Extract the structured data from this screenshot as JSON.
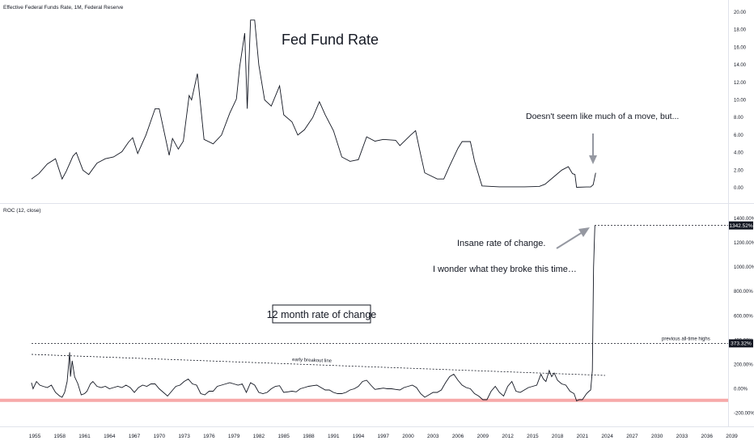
{
  "chart_data": [
    {
      "type": "line",
      "title": "Effective Federal Funds Rate, 1M, Federal Reserve",
      "annotation_title": "Fed Fund Rate",
      "annotation_note": "Doesn't seem like much of a move, but...",
      "y_ticks": [
        "20.00",
        "18.00",
        "16.00",
        "14.00",
        "12.00",
        "10.00",
        "8.00",
        "6.00",
        "4.00",
        "2.00",
        "0.00"
      ],
      "ylim": [
        -0.5,
        20.5
      ],
      "series": [
        {
          "color": "#131722",
          "points": [
            [
              1954.6,
              1.0
            ],
            [
              1955.5,
              1.6
            ],
            [
              1956.5,
              2.7
            ],
            [
              1957.5,
              3.3
            ],
            [
              1958.3,
              1.0
            ],
            [
              1958.8,
              1.9
            ],
            [
              1959.6,
              3.6
            ],
            [
              1960.0,
              4.0
            ],
            [
              1960.8,
              2.0
            ],
            [
              1961.5,
              1.5
            ],
            [
              1962.5,
              2.8
            ],
            [
              1963.5,
              3.3
            ],
            [
              1964.5,
              3.5
            ],
            [
              1965.5,
              4.1
            ],
            [
              1966.3,
              5.2
            ],
            [
              1966.8,
              5.7
            ],
            [
              1967.4,
              3.9
            ],
            [
              1968.4,
              6.0
            ],
            [
              1969.5,
              9.0
            ],
            [
              1970.0,
              9.0
            ],
            [
              1971.2,
              3.7
            ],
            [
              1971.6,
              5.6
            ],
            [
              1972.3,
              4.4
            ],
            [
              1972.9,
              5.3
            ],
            [
              1973.6,
              10.5
            ],
            [
              1973.9,
              10.0
            ],
            [
              1974.6,
              13.0
            ],
            [
              1975.4,
              5.5
            ],
            [
              1976.5,
              5.0
            ],
            [
              1977.5,
              6.0
            ],
            [
              1978.5,
              8.5
            ],
            [
              1979.3,
              10.1
            ],
            [
              1979.7,
              13.8
            ],
            [
              1980.3,
              17.6
            ],
            [
              1980.6,
              9.0
            ],
            [
              1981.0,
              19.1
            ],
            [
              1981.5,
              19.1
            ],
            [
              1982.0,
              14.0
            ],
            [
              1982.7,
              10.0
            ],
            [
              1983.5,
              9.3
            ],
            [
              1984.5,
              11.6
            ],
            [
              1985.0,
              8.3
            ],
            [
              1986.0,
              7.5
            ],
            [
              1986.7,
              6.0
            ],
            [
              1987.5,
              6.6
            ],
            [
              1988.5,
              8.0
            ],
            [
              1989.3,
              9.8
            ],
            [
              1990.0,
              8.3
            ],
            [
              1991.0,
              6.5
            ],
            [
              1992.0,
              3.5
            ],
            [
              1993.0,
              3.0
            ],
            [
              1994.0,
              3.2
            ],
            [
              1995.0,
              5.8
            ],
            [
              1996.0,
              5.3
            ],
            [
              1997.0,
              5.5
            ],
            [
              1998.5,
              5.4
            ],
            [
              1999.0,
              4.8
            ],
            [
              2000.3,
              6.0
            ],
            [
              2000.9,
              6.5
            ],
            [
              2001.5,
              3.8
            ],
            [
              2002.0,
              1.7
            ],
            [
              2003.5,
              1.0
            ],
            [
              2004.3,
              1.0
            ],
            [
              2005.0,
              2.5
            ],
            [
              2006.0,
              4.5
            ],
            [
              2006.5,
              5.25
            ],
            [
              2007.5,
              5.25
            ],
            [
              2008.0,
              3.0
            ],
            [
              2008.9,
              0.2
            ],
            [
              2011.0,
              0.1
            ],
            [
              2014.0,
              0.1
            ],
            [
              2015.8,
              0.15
            ],
            [
              2016.5,
              0.4
            ],
            [
              2017.5,
              1.2
            ],
            [
              2018.5,
              2.0
            ],
            [
              2019.3,
              2.4
            ],
            [
              2019.8,
              1.6
            ],
            [
              2020.1,
              1.5
            ],
            [
              2020.3,
              0.05
            ],
            [
              2021.5,
              0.08
            ],
            [
              2022.0,
              0.08
            ],
            [
              2022.3,
              0.33
            ],
            [
              2022.6,
              1.7
            ]
          ]
        }
      ]
    },
    {
      "type": "line",
      "title": "ROC (12, close)",
      "annotation_title": "12 month rate of change",
      "annotation_note_1": "Insane rate of change.",
      "annotation_note_2": "I wonder what they broke this time…",
      "trendline_label": "early breakout line",
      "hline_label": "previous all-time highs",
      "last_value": "1342.52%",
      "prev_high_value": "373.32%",
      "hline_value": 373.32,
      "y_ticks": [
        "1400.00%",
        "1200.00%",
        "1000.00%",
        "800.00%",
        "600.00%",
        "400.00%",
        "200.00%",
        "0.00%",
        "-200.00%"
      ],
      "ylim": [
        -250,
        1450
      ],
      "x_ticks": [
        "1955",
        "1958",
        "1961",
        "1964",
        "1967",
        "1970",
        "1973",
        "1976",
        "1979",
        "1982",
        "1985",
        "1988",
        "1991",
        "1994",
        "1997",
        "2000",
        "2003",
        "2006",
        "2009",
        "2012",
        "2015",
        "2018",
        "2021",
        "2024",
        "2027",
        "2030",
        "2033",
        "2036",
        "2039"
      ],
      "xlim": [
        1953.5,
        2039.5
      ],
      "series": [
        {
          "color": "#131722",
          "points": [
            [
              1954.6,
              50
            ],
            [
              1954.8,
              0
            ],
            [
              1955.2,
              60
            ],
            [
              1955.6,
              30
            ],
            [
              1956.0,
              20
            ],
            [
              1956.5,
              10
            ],
            [
              1957.0,
              30
            ],
            [
              1957.5,
              -30
            ],
            [
              1958.0,
              -60
            ],
            [
              1958.3,
              -70
            ],
            [
              1958.6,
              -30
            ],
            [
              1958.9,
              60
            ],
            [
              1959.2,
              300
            ],
            [
              1959.3,
              100
            ],
            [
              1959.5,
              230
            ],
            [
              1959.8,
              100
            ],
            [
              1960.2,
              40
            ],
            [
              1960.6,
              -50
            ],
            [
              1961.0,
              -40
            ],
            [
              1961.3,
              -20
            ],
            [
              1961.7,
              40
            ],
            [
              1962.0,
              60
            ],
            [
              1962.5,
              20
            ],
            [
              1963.0,
              10
            ],
            [
              1963.5,
              20
            ],
            [
              1964.0,
              0
            ],
            [
              1964.5,
              10
            ],
            [
              1965.0,
              20
            ],
            [
              1965.5,
              10
            ],
            [
              1966.0,
              30
            ],
            [
              1966.5,
              10
            ],
            [
              1967.0,
              -30
            ],
            [
              1967.5,
              10
            ],
            [
              1968.0,
              30
            ],
            [
              1968.5,
              20
            ],
            [
              1969.0,
              40
            ],
            [
              1969.5,
              40
            ],
            [
              1970.0,
              0
            ],
            [
              1970.5,
              -30
            ],
            [
              1971.0,
              -60
            ],
            [
              1971.5,
              -20
            ],
            [
              1972.0,
              20
            ],
            [
              1972.5,
              30
            ],
            [
              1973.0,
              60
            ],
            [
              1973.5,
              80
            ],
            [
              1974.0,
              40
            ],
            [
              1974.5,
              30
            ],
            [
              1975.0,
              -40
            ],
            [
              1975.5,
              -50
            ],
            [
              1976.0,
              -20
            ],
            [
              1976.5,
              -20
            ],
            [
              1977.0,
              20
            ],
            [
              1977.5,
              30
            ],
            [
              1978.0,
              40
            ],
            [
              1978.5,
              50
            ],
            [
              1979.0,
              40
            ],
            [
              1979.5,
              30
            ],
            [
              1980.0,
              40
            ],
            [
              1980.5,
              -30
            ],
            [
              1981.0,
              50
            ],
            [
              1981.5,
              30
            ],
            [
              1982.0,
              -30
            ],
            [
              1982.5,
              -40
            ],
            [
              1983.0,
              -30
            ],
            [
              1983.5,
              0
            ],
            [
              1984.0,
              20
            ],
            [
              1984.5,
              25
            ],
            [
              1985.0,
              -30
            ],
            [
              1985.5,
              -25
            ],
            [
              1986.0,
              -20
            ],
            [
              1986.5,
              -25
            ],
            [
              1987.0,
              0
            ],
            [
              1987.5,
              10
            ],
            [
              1988.0,
              20
            ],
            [
              1988.5,
              25
            ],
            [
              1989.0,
              30
            ],
            [
              1989.5,
              10
            ],
            [
              1990.0,
              -10
            ],
            [
              1990.5,
              -10
            ],
            [
              1991.0,
              -30
            ],
            [
              1991.5,
              -40
            ],
            [
              1992.0,
              -40
            ],
            [
              1992.5,
              -30
            ],
            [
              1993.0,
              -10
            ],
            [
              1993.5,
              0
            ],
            [
              1994.0,
              20
            ],
            [
              1994.5,
              60
            ],
            [
              1995.0,
              70
            ],
            [
              1995.5,
              30
            ],
            [
              1996.0,
              -5
            ],
            [
              1996.5,
              0
            ],
            [
              1997.0,
              5
            ],
            [
              1997.5,
              0
            ],
            [
              1998.0,
              0
            ],
            [
              1998.5,
              -5
            ],
            [
              1999.0,
              -10
            ],
            [
              1999.5,
              10
            ],
            [
              2000.0,
              20
            ],
            [
              2000.5,
              30
            ],
            [
              2001.0,
              10
            ],
            [
              2001.5,
              -40
            ],
            [
              2002.0,
              -70
            ],
            [
              2002.5,
              -50
            ],
            [
              2003.0,
              -30
            ],
            [
              2003.5,
              -30
            ],
            [
              2004.0,
              -10
            ],
            [
              2004.5,
              50
            ],
            [
              2005.0,
              100
            ],
            [
              2005.5,
              120
            ],
            [
              2006.0,
              70
            ],
            [
              2006.5,
              30
            ],
            [
              2007.0,
              10
            ],
            [
              2007.5,
              0
            ],
            [
              2008.0,
              -40
            ],
            [
              2008.5,
              -60
            ],
            [
              2009.0,
              -90
            ],
            [
              2009.5,
              -90
            ],
            [
              2010.0,
              -20
            ],
            [
              2010.5,
              20
            ],
            [
              2011.0,
              -30
            ],
            [
              2011.5,
              -60
            ],
            [
              2012.0,
              20
            ],
            [
              2012.5,
              60
            ],
            [
              2013.0,
              -20
            ],
            [
              2013.5,
              -30
            ],
            [
              2014.0,
              -10
            ],
            [
              2014.5,
              10
            ],
            [
              2015.0,
              20
            ],
            [
              2015.5,
              30
            ],
            [
              2016.0,
              120
            ],
            [
              2016.3,
              80
            ],
            [
              2016.6,
              60
            ],
            [
              2017.0,
              150
            ],
            [
              2017.3,
              100
            ],
            [
              2017.6,
              130
            ],
            [
              2018.0,
              70
            ],
            [
              2018.5,
              40
            ],
            [
              2019.0,
              30
            ],
            [
              2019.5,
              -20
            ],
            [
              2020.0,
              -40
            ],
            [
              2020.3,
              -100
            ],
            [
              2020.6,
              -90
            ],
            [
              2021.0,
              -90
            ],
            [
              2021.5,
              -40
            ],
            [
              2021.8,
              -20
            ],
            [
              2022.0,
              -10
            ],
            [
              2022.2,
              150
            ],
            [
              2022.35,
              1000
            ],
            [
              2022.5,
              1342.52
            ]
          ]
        }
      ]
    }
  ]
}
